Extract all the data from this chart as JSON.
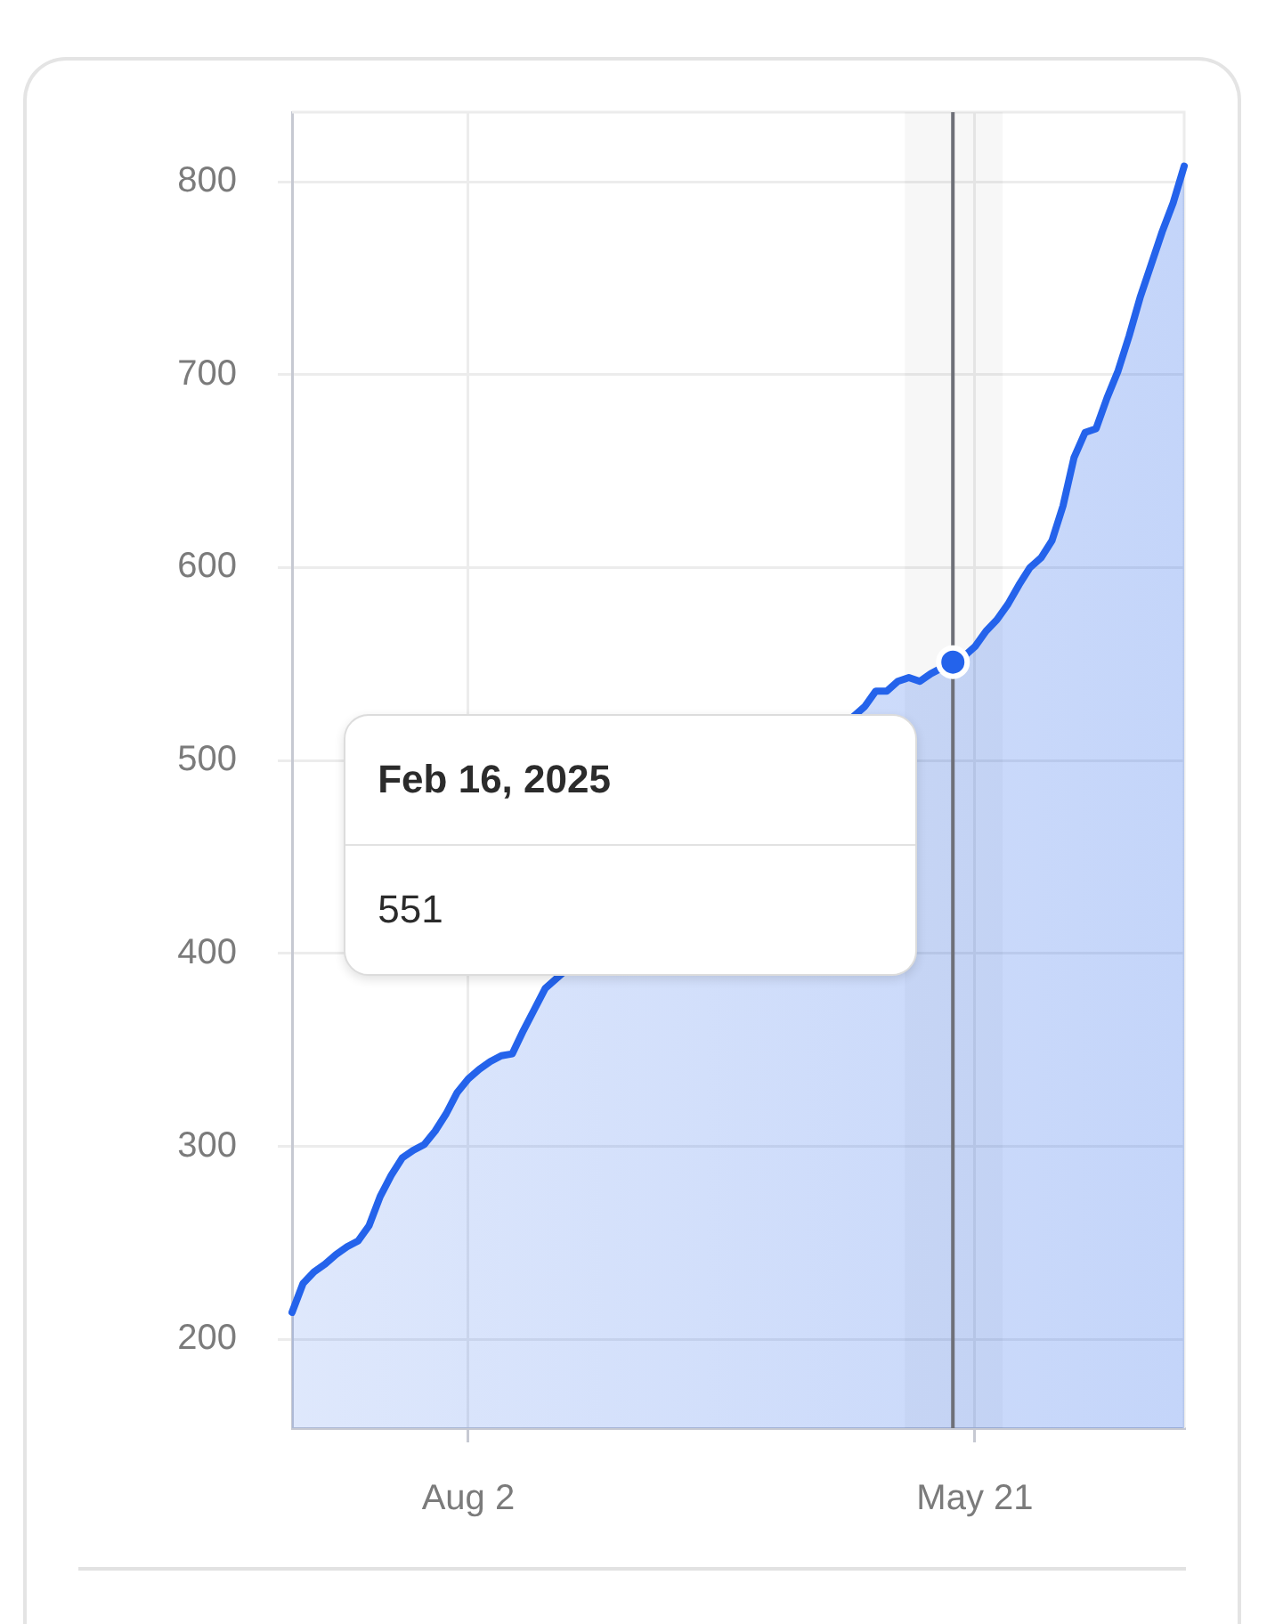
{
  "chart_data": {
    "type": "area",
    "categories": [
      null,
      null,
      null,
      null,
      null,
      null,
      null,
      null,
      null,
      null,
      null,
      null,
      null,
      null,
      null,
      null,
      "Aug 2",
      null,
      null,
      null,
      null,
      null,
      null,
      null,
      null,
      null,
      null,
      null,
      null,
      null,
      null,
      null,
      null,
      null,
      null,
      null,
      null,
      null,
      null,
      null,
      null,
      null,
      null,
      null,
      null,
      null,
      null,
      null,
      null,
      null,
      null,
      null,
      null,
      null,
      null,
      null,
      null,
      null,
      null,
      null,
      null,
      null,
      "May 21",
      null,
      null,
      null,
      null,
      null,
      null,
      null,
      null,
      null,
      null,
      null,
      null,
      null,
      null,
      null,
      null,
      null,
      null,
      null
    ],
    "series": [
      {
        "color": "#2463eb",
        "values": [
          214,
          229,
          235,
          239,
          244,
          248,
          251,
          259,
          274,
          285,
          294,
          298,
          301,
          308,
          317,
          328,
          335,
          340,
          344,
          347,
          348,
          360,
          371,
          382,
          null,
          null,
          null,
          null,
          null,
          null,
          null,
          null,
          null,
          null,
          null,
          null,
          null,
          null,
          null,
          null,
          null,
          null,
          null,
          null,
          null,
          null,
          null,
          null,
          null,
          null,
          null,
          null,
          528,
          536,
          536,
          541,
          543,
          541,
          545,
          548,
          551,
          554,
          559,
          567,
          573,
          581,
          591,
          600,
          605,
          614,
          632,
          657,
          670,
          672,
          688,
          702,
          720,
          740,
          757,
          774,
          789,
          808
        ]
      },
      {
        "type": "scatter",
        "marker": "circle",
        "color": "#2463eb",
        "values": [
          null,
          null,
          null,
          null,
          null,
          null,
          null,
          null,
          null,
          null,
          null,
          null,
          null,
          null,
          null,
          null,
          null,
          null,
          null,
          null,
          null,
          null,
          null,
          null,
          null,
          null,
          null,
          null,
          null,
          null,
          null,
          null,
          null,
          null,
          null,
          null,
          null,
          null,
          null,
          null,
          null,
          null,
          null,
          null,
          null,
          null,
          null,
          null,
          null,
          null,
          null,
          null,
          null,
          null,
          null,
          null,
          null,
          null,
          null,
          null,
          551,
          null,
          null,
          null,
          null,
          null,
          null,
          null,
          null,
          null,
          null,
          null,
          null,
          null,
          null,
          null,
          null,
          null,
          null,
          null,
          null,
          null
        ]
      }
    ],
    "ylim": [
      154,
      836
    ],
    "yticks": [
      200,
      300,
      400,
      500,
      600,
      700,
      800
    ],
    "grid": true,
    "annotations": [
      "Feb 16, 2025",
      "551"
    ]
  }
}
